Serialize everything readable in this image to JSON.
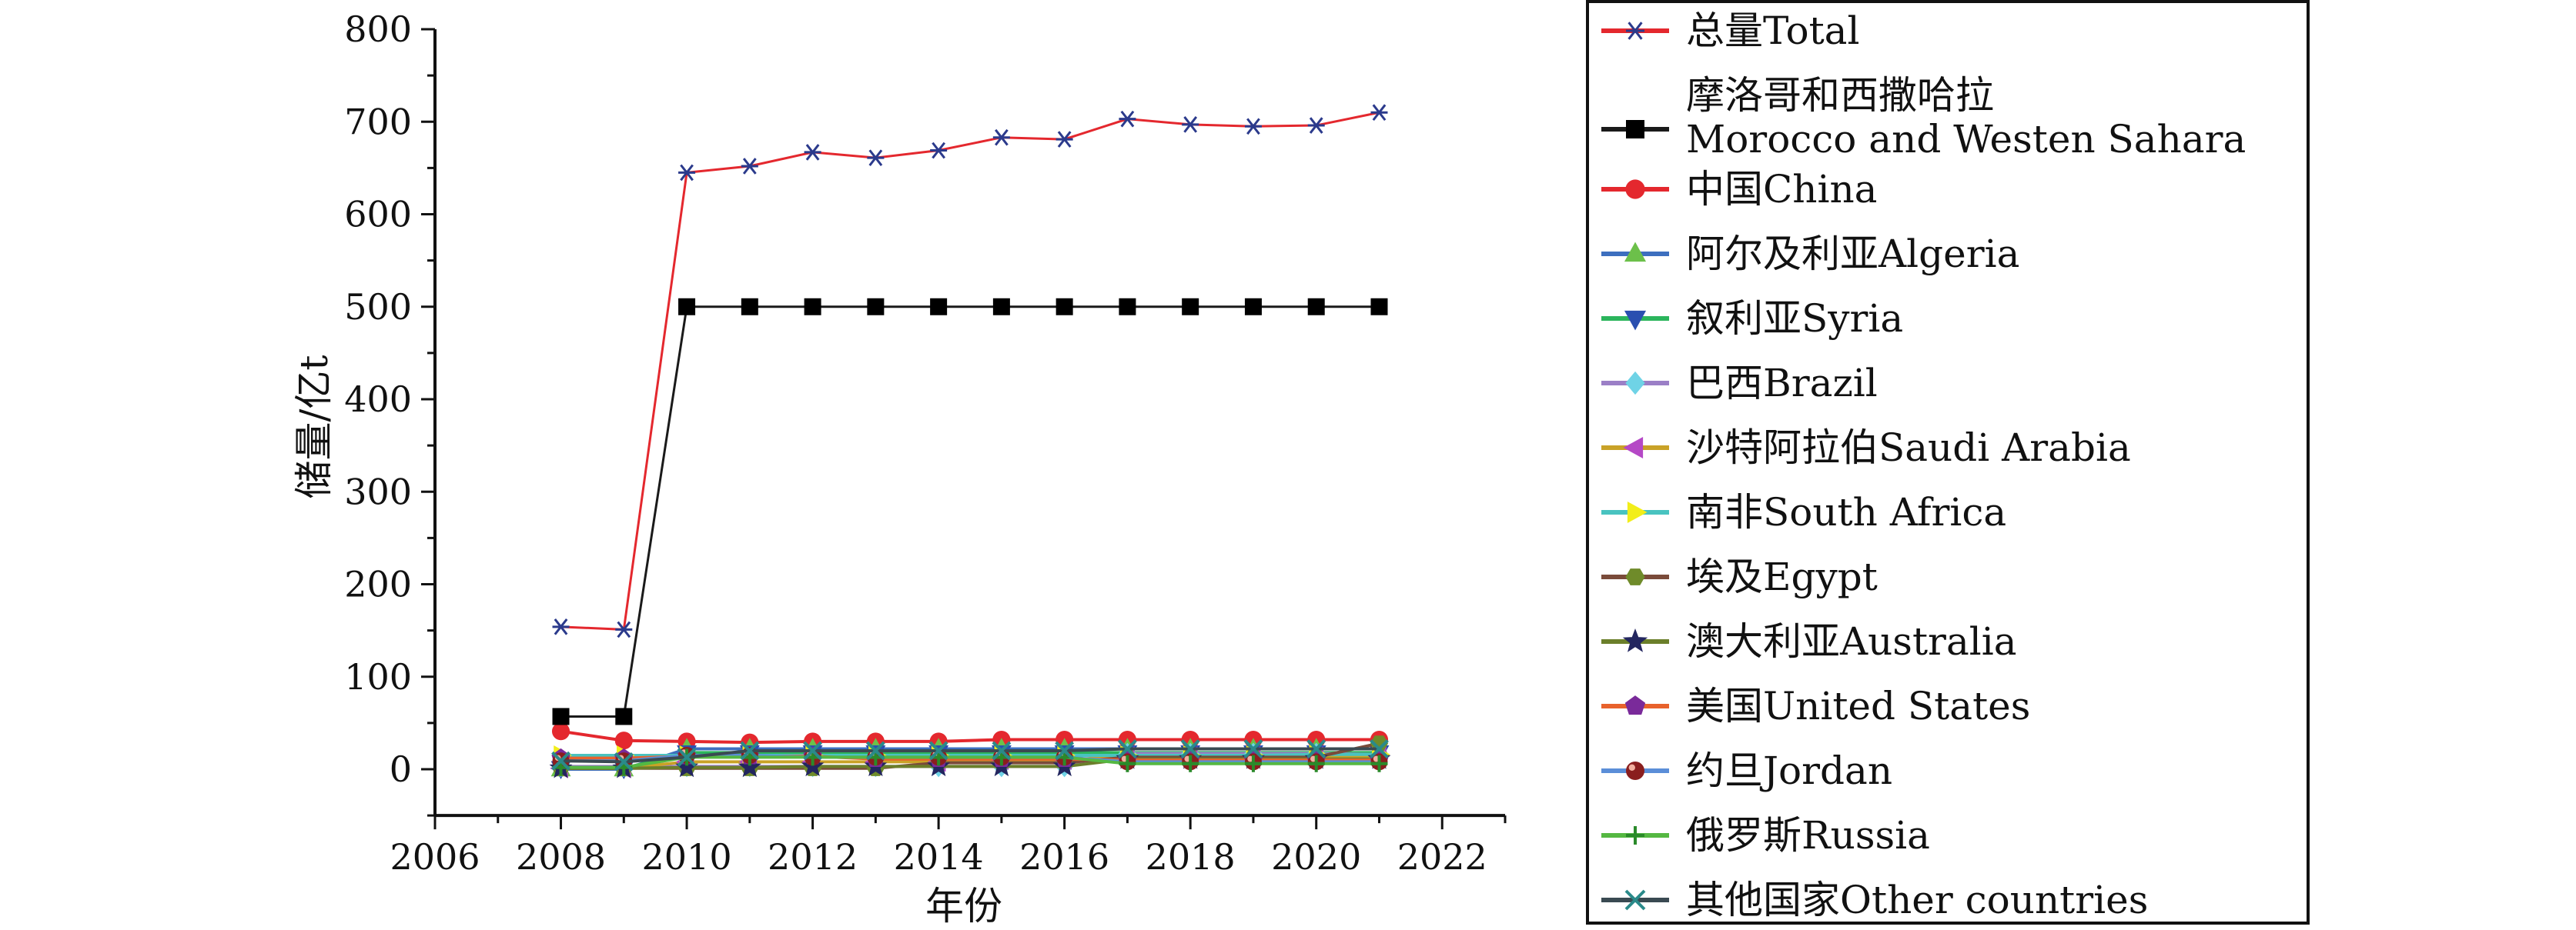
{
  "chart_data": {
    "type": "line",
    "title": "",
    "xlabel": "年份",
    "ylabel": "储量/亿t",
    "xlim": [
      2006,
      2023
    ],
    "ylim": [
      -50,
      800
    ],
    "xticks": [
      2006,
      2008,
      2010,
      2012,
      2014,
      2016,
      2018,
      2020,
      2022
    ],
    "yticks": [
      0,
      100,
      200,
      300,
      400,
      500,
      600,
      700,
      800
    ],
    "grid": false,
    "legend_position": "right",
    "x": [
      2008,
      2009,
      2010,
      2011,
      2012,
      2013,
      2014,
      2015,
      2016,
      2017,
      2018,
      2019,
      2020,
      2021
    ],
    "series": [
      {
        "name": "总量Total",
        "color": "#e4282e",
        "marker": "asterisk",
        "marker_color": "#2b3a8c",
        "values": [
          154,
          151,
          645,
          652,
          667,
          661,
          669,
          683,
          681,
          703,
          697,
          695,
          696,
          710
        ]
      },
      {
        "name": "摩洛哥和西撒哈拉 Morocco and Westen Sahara",
        "color": "#1a1a1a",
        "marker": "square",
        "marker_color": "#000000",
        "values": [
          57,
          57,
          500,
          500,
          500,
          500,
          500,
          500,
          500,
          500,
          500,
          500,
          500,
          500
        ]
      },
      {
        "name": "中国China",
        "color": "#e4282e",
        "marker": "circle",
        "marker_color": "#e4282e",
        "values": [
          41,
          31,
          30,
          29,
          30,
          30,
          30,
          32,
          32,
          32,
          32,
          32,
          32,
          32
        ]
      },
      {
        "name": "阿尔及利亚Algeria",
        "color": "#3d6fbf",
        "marker": "triangle-up",
        "marker_color": "#6cc04a",
        "values": [
          0,
          0,
          22,
          22,
          22,
          22,
          22,
          22,
          22,
          22,
          22,
          22,
          22,
          22
        ]
      },
      {
        "name": "叙利亚Syria",
        "color": "#2bb55c",
        "marker": "triangle-down",
        "marker_color": "#2a4fb0",
        "values": [
          1,
          1,
          18,
          18,
          18,
          18,
          18,
          18,
          18,
          18,
          18,
          18,
          18,
          18
        ]
      },
      {
        "name": "巴西Brazil",
        "color": "#9b7fc6",
        "marker": "diamond",
        "marker_color": "#6fd3e6",
        "values": [
          3,
          3,
          3,
          3,
          3,
          3,
          3,
          3,
          3,
          17,
          17,
          17,
          17,
          16
        ]
      },
      {
        "name": "沙特阿拉伯Saudi Arabia",
        "color": "#c9a227",
        "marker": "triangle-left",
        "marker_color": "#b548c6",
        "values": [
          1,
          1,
          8,
          8,
          8,
          8,
          8,
          10,
          10,
          14,
          14,
          14,
          14,
          14
        ]
      },
      {
        "name": "南非South Africa",
        "color": "#49c3c0",
        "marker": "triangle-right",
        "marker_color": "#f2ee1a",
        "values": [
          15,
          15,
          15,
          15,
          15,
          15,
          15,
          15,
          15,
          15,
          15,
          15,
          16,
          16
        ]
      },
      {
        "name": "埃及Egypt",
        "color": "#7a4b3a",
        "marker": "hexagon",
        "marker_color": "#6f8b2a",
        "values": [
          1,
          1,
          1,
          1,
          1,
          1,
          7,
          7,
          7,
          13,
          13,
          13,
          13,
          28
        ]
      },
      {
        "name": "澳大利亚Australia",
        "color": "#6b7f2a",
        "marker": "star",
        "marker_color": "#23265f",
        "values": [
          1,
          1,
          2,
          2,
          3,
          3,
          3,
          3,
          3,
          11,
          11,
          11,
          11,
          11
        ]
      },
      {
        "name": "美国United States",
        "color": "#e8622c",
        "marker": "pentagon",
        "marker_color": "#7a2a9a",
        "values": [
          12,
          12,
          14,
          14,
          14,
          11,
          11,
          11,
          11,
          10,
          10,
          10,
          10,
          10
        ]
      },
      {
        "name": "约旦Jordan",
        "color": "#5b8ed8",
        "marker": "sphere",
        "marker_color": "#8a1e1e",
        "values": [
          9,
          9,
          15,
          15,
          13,
          13,
          13,
          13,
          13,
          8,
          8,
          8,
          8,
          8
        ]
      },
      {
        "name": "俄罗斯Russia",
        "color": "#55b842",
        "marker": "plus",
        "marker_color": "#2a8a2a",
        "values": [
          2,
          2,
          13,
          13,
          13,
          13,
          13,
          13,
          13,
          6,
          6,
          6,
          6,
          6
        ]
      },
      {
        "name": "其他国家Other countries",
        "color": "#3a4a52",
        "marker": "x",
        "marker_color": "#2a8a8a",
        "values": [
          9,
          8,
          13,
          20,
          20,
          20,
          20,
          20,
          20,
          22,
          22,
          22,
          22,
          22
        ]
      }
    ]
  }
}
